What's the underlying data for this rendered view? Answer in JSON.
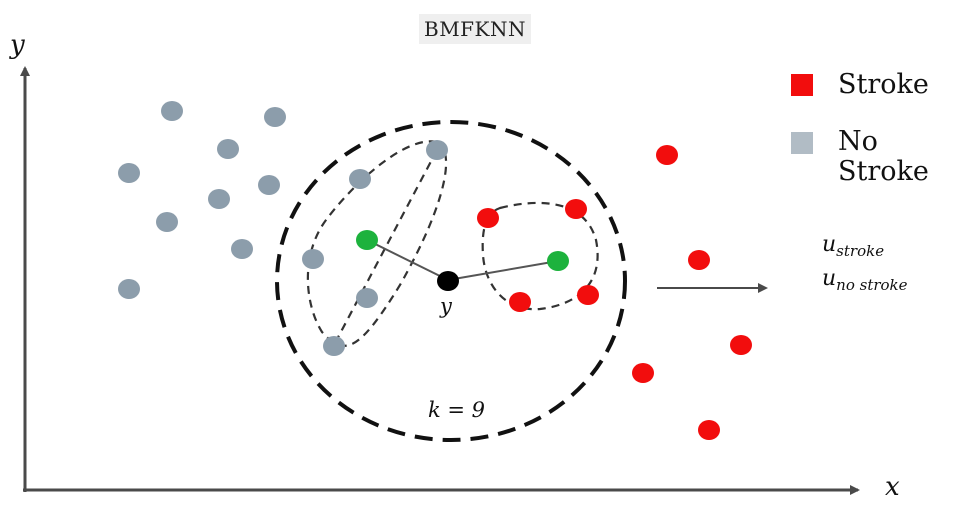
{
  "title": "BMFKNN",
  "axes": {
    "x_label": "x",
    "y_label": "y"
  },
  "legend": [
    {
      "label": "Stroke",
      "color": "#f20d0d"
    },
    {
      "label": "No Stroke",
      "color": "#b1bcc5"
    }
  ],
  "colors": {
    "stroke": "#f20d0d",
    "no_stroke": "#8c9dab",
    "neighbor": "#1db23d",
    "query": "#000000",
    "lines": "#555555"
  },
  "query_label": "y",
  "k_label": "k = 9",
  "output": {
    "u_symbol": "u",
    "u_stroke_sub": "stroke",
    "u_no_stroke_sub": "no stroke"
  }
}
